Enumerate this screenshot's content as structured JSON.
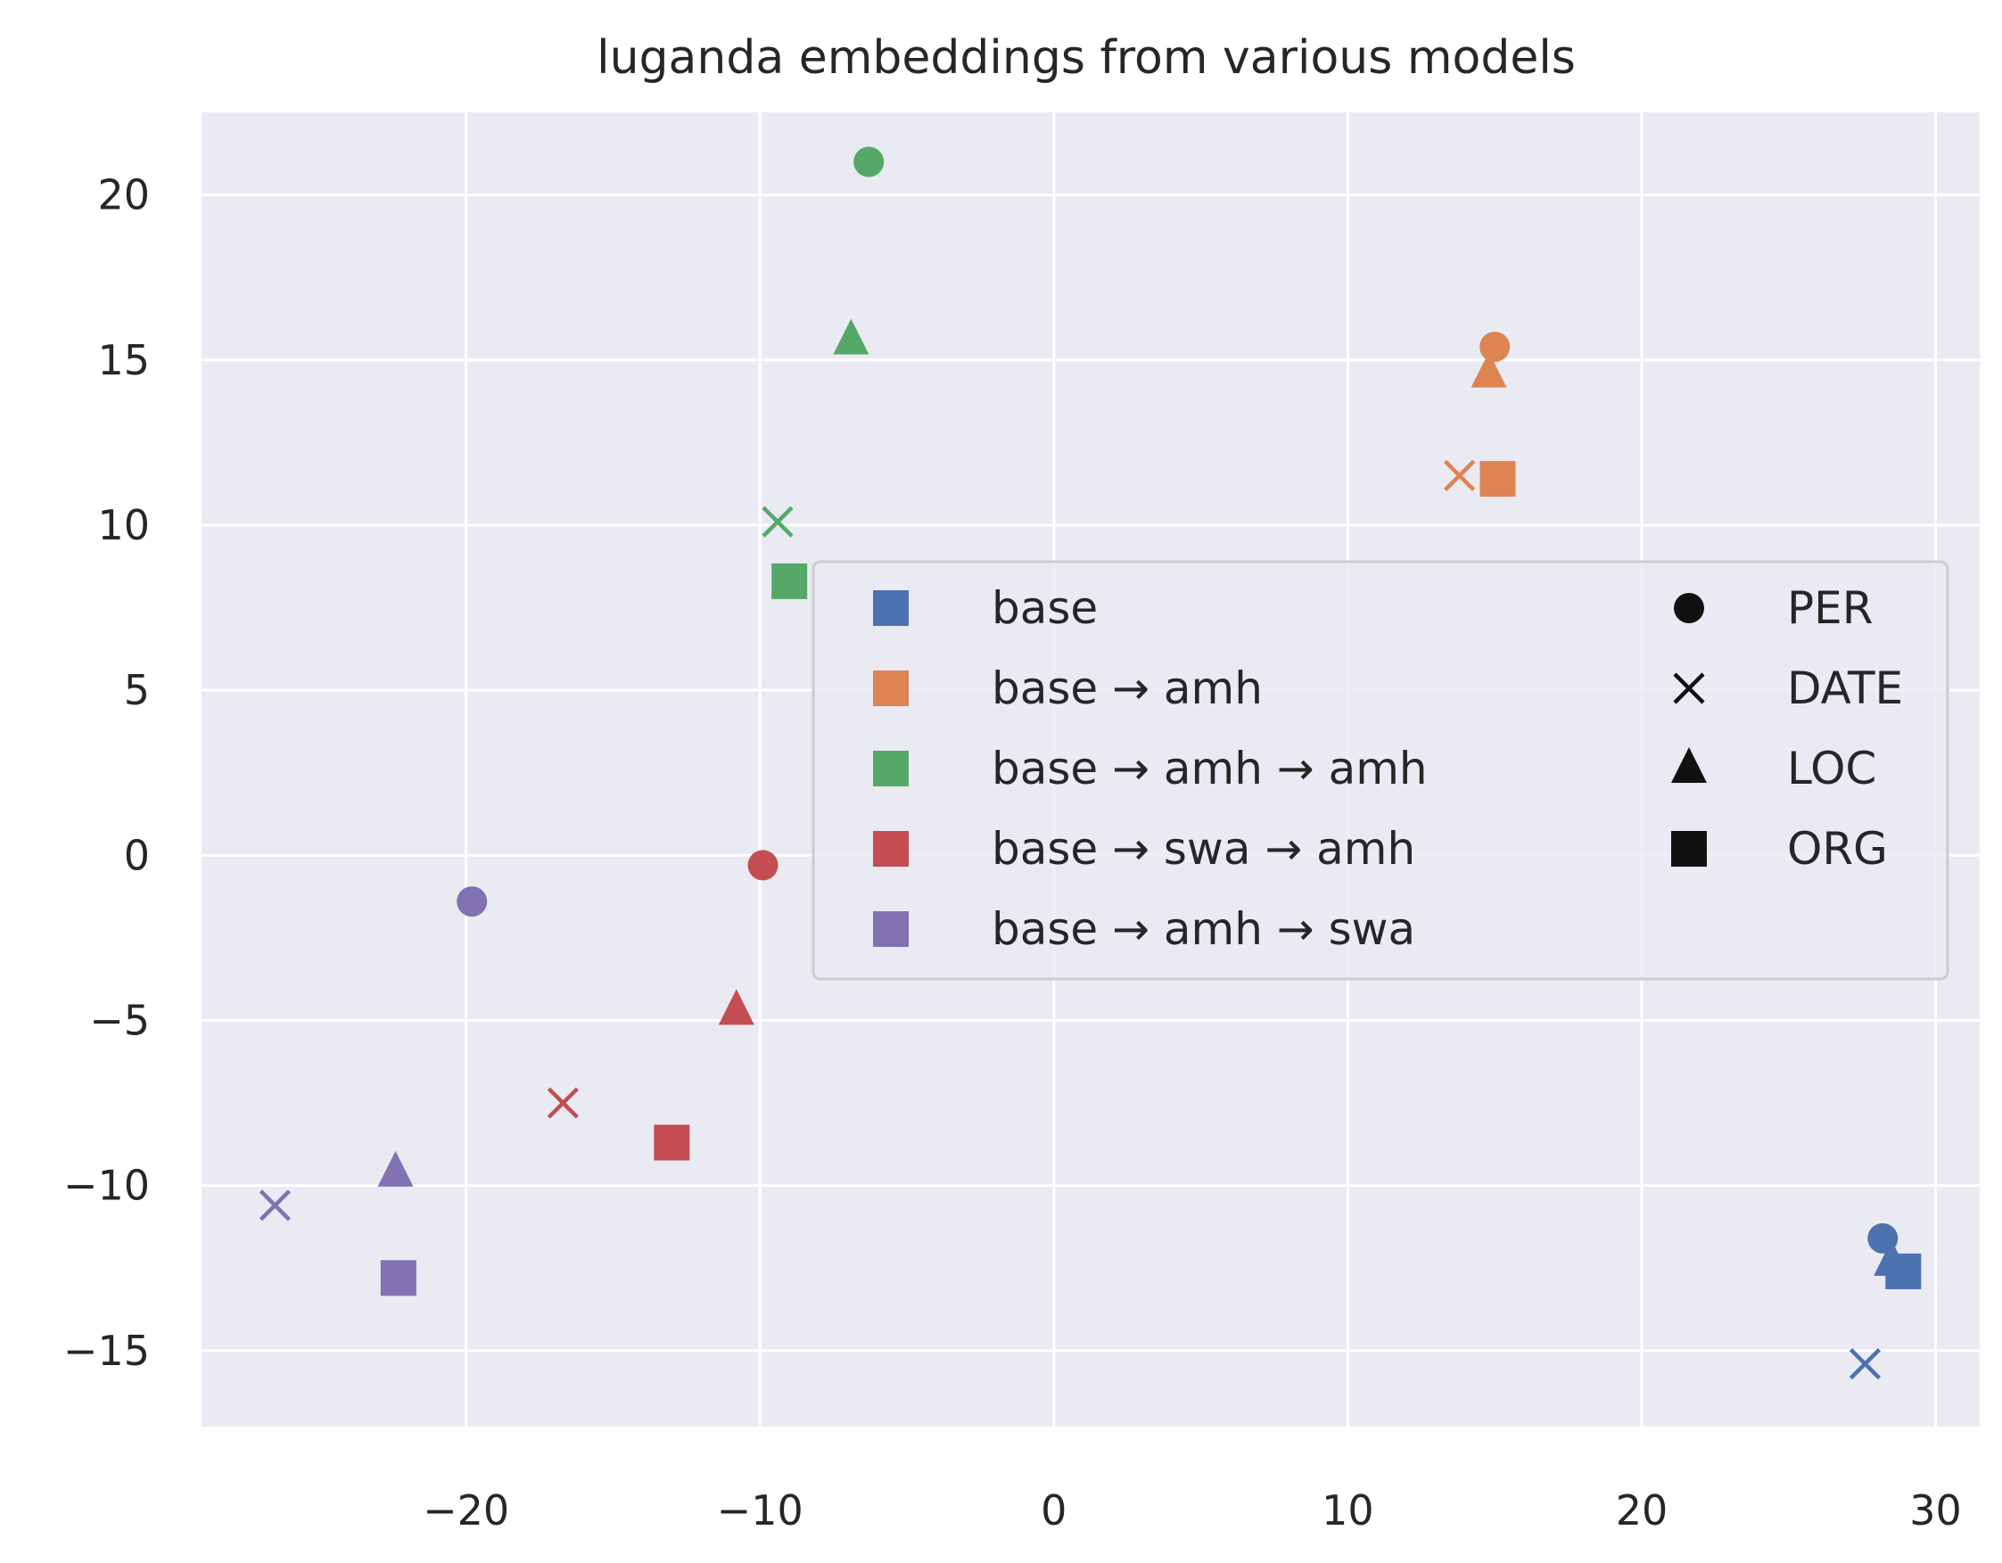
{
  "chart_data": {
    "type": "scatter",
    "title": "luganda embeddings from various models",
    "xlabel": "",
    "ylabel": "",
    "xlim": [
      -29,
      31.5
    ],
    "ylim": [
      -17.3,
      22.5
    ],
    "xticks": [
      -20,
      -10,
      0,
      10,
      20,
      30
    ],
    "xtick_labels": [
      "−20",
      "−10",
      "0",
      "10",
      "20",
      "30"
    ],
    "yticks": [
      -15,
      -10,
      -5,
      0,
      5,
      10,
      15,
      20
    ],
    "ytick_labels": [
      "−15",
      "−10",
      "−5",
      "0",
      "5",
      "10",
      "15",
      "20"
    ],
    "grid": true,
    "background": "#eaeaf2",
    "legend_placement": "center-right",
    "series": [
      {
        "name": "base",
        "color": "#4c72b0",
        "points": [
          {
            "label": "PER",
            "x": 28.2,
            "y": -11.6
          },
          {
            "label": "DATE",
            "x": 27.6,
            "y": -15.4
          },
          {
            "label": "LOC",
            "x": 28.5,
            "y": -12.3
          },
          {
            "label": "ORG",
            "x": 28.9,
            "y": -12.6
          }
        ]
      },
      {
        "name": "base → amh",
        "color": "#dd8452",
        "points": [
          {
            "label": "PER",
            "x": 15.0,
            "y": 15.4
          },
          {
            "label": "DATE",
            "x": 13.8,
            "y": 11.5
          },
          {
            "label": "LOC",
            "x": 14.8,
            "y": 14.6
          },
          {
            "label": "ORG",
            "x": 15.1,
            "y": 11.4
          }
        ]
      },
      {
        "name": "base → amh → amh",
        "color": "#55a868",
        "points": [
          {
            "label": "PER",
            "x": -6.3,
            "y": 21.0
          },
          {
            "label": "DATE",
            "x": -9.4,
            "y": 10.1
          },
          {
            "label": "LOC",
            "x": -6.9,
            "y": 15.6
          },
          {
            "label": "ORG",
            "x": -9.0,
            "y": 8.3
          }
        ]
      },
      {
        "name": "base → swa → amh",
        "color": "#c44e52",
        "points": [
          {
            "label": "PER",
            "x": -9.9,
            "y": -0.3
          },
          {
            "label": "DATE",
            "x": -16.7,
            "y": -7.5
          },
          {
            "label": "LOC",
            "x": -10.8,
            "y": -4.7
          },
          {
            "label": "ORG",
            "x": -13.0,
            "y": -8.7
          }
        ]
      },
      {
        "name": "base → amh → swa",
        "color": "#8172b3",
        "points": [
          {
            "label": "PER",
            "x": -19.8,
            "y": -1.4
          },
          {
            "label": "DATE",
            "x": -26.5,
            "y": -10.6
          },
          {
            "label": "LOC",
            "x": -22.4,
            "y": -9.6
          },
          {
            "label": "ORG",
            "x": -22.3,
            "y": -12.8
          }
        ]
      }
    ],
    "marker_legend": [
      {
        "label": "PER",
        "marker": "circle"
      },
      {
        "label": "DATE",
        "marker": "x"
      },
      {
        "label": "LOC",
        "marker": "triangle"
      },
      {
        "label": "ORG",
        "marker": "square"
      }
    ]
  }
}
